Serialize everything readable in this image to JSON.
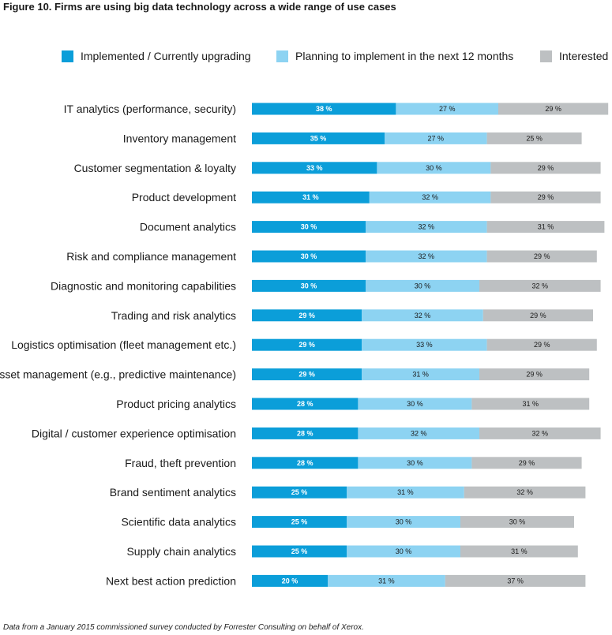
{
  "chart_data": {
    "type": "bar",
    "orientation": "horizontal",
    "stacked": true,
    "title": "Figure 10. Firms are using big data technology across a wide range of use cases",
    "footnote": "Data from a January 2015 commissioned survey conducted by Forrester Consulting on behalf of Xerox.",
    "legend_position": "top",
    "value_suffix": "%",
    "categories": [
      "IT analytics (performance, security)",
      "Inventory management",
      "Customer segmentation & loyalty",
      "Product development",
      "Document analytics",
      "Risk and compliance management",
      "Diagnostic and monitoring capabilities",
      "Trading and risk analytics",
      "Logistics optimisation (fleet management etc.)",
      "Asset management (e.g., predictive maintenance)",
      "Product pricing analytics",
      "Digital / customer experience optimisation",
      "Fraud, theft prevention",
      "Brand sentiment analytics",
      "Scientific data analytics",
      "Supply chain analytics",
      "Next best action prediction"
    ],
    "series": [
      {
        "name": "Implemented / Currently upgrading",
        "color": "#0b9ed9",
        "label_color": "#ffffff",
        "values": [
          38,
          35,
          33,
          31,
          30,
          30,
          30,
          29,
          29,
          29,
          28,
          28,
          28,
          25,
          25,
          25,
          20
        ]
      },
      {
        "name": "Planning to implement in the next 12 months",
        "color": "#8dd3f2",
        "label_color": "#1a1a1a",
        "values": [
          27,
          27,
          30,
          32,
          32,
          32,
          30,
          32,
          33,
          31,
          30,
          32,
          30,
          31,
          30,
          30,
          31
        ]
      },
      {
        "name": "Interested",
        "color": "#bdc0c2",
        "label_color": "#1a1a1a",
        "values": [
          29,
          25,
          29,
          29,
          31,
          29,
          32,
          29,
          29,
          29,
          31,
          32,
          29,
          32,
          30,
          31,
          37
        ]
      }
    ]
  }
}
